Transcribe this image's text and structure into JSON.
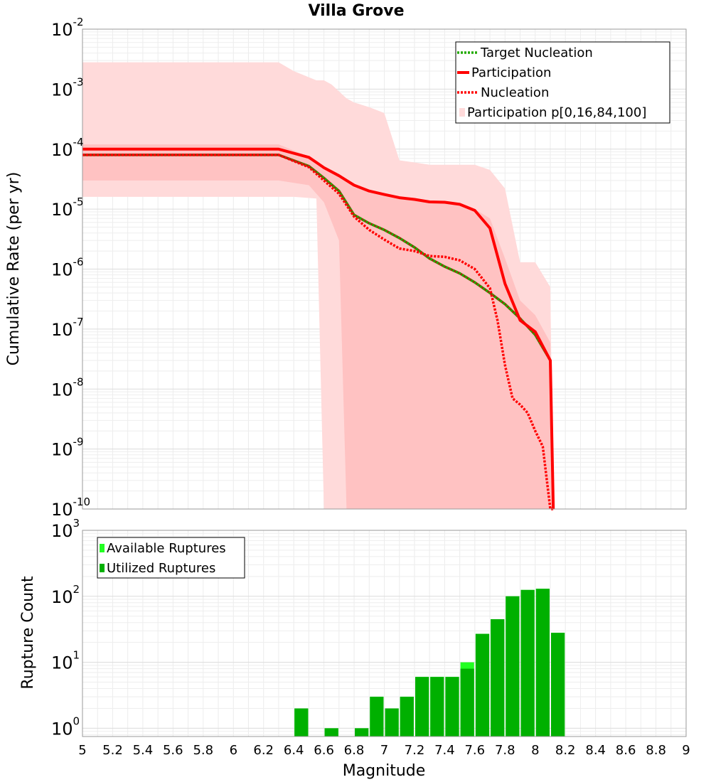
{
  "chart_data": [
    {
      "type": "line",
      "title": "Villa Grove",
      "ylabel": "Cumulative Rate (per yr)",
      "xlabel": "Magnitude",
      "xlim": [
        5,
        9
      ],
      "ylim": [
        1e-10,
        0.01
      ],
      "yscale": "log",
      "grid": true,
      "legend_position": "top-right",
      "y_ticks": [
        {
          "base": "10",
          "exp": "-2",
          "value": 0.01
        },
        {
          "base": "10",
          "exp": "-3",
          "value": 0.001
        },
        {
          "base": "10",
          "exp": "-4",
          "value": 0.0001
        },
        {
          "base": "10",
          "exp": "-5",
          "value": 1e-05
        },
        {
          "base": "10",
          "exp": "-6",
          "value": 1e-06
        },
        {
          "base": "10",
          "exp": "-7",
          "value": 1e-07
        },
        {
          "base": "10",
          "exp": "-8",
          "value": 1e-08
        },
        {
          "base": "10",
          "exp": "-9",
          "value": 1e-09
        },
        {
          "base": "10",
          "exp": "-10",
          "value": 1e-10
        }
      ],
      "series": [
        {
          "name": "Target Nucleation",
          "style": "dotted",
          "color": "#22aa00",
          "color2": "#9a2c00",
          "x": [
            5.0,
            6.3,
            6.5,
            6.6,
            6.7,
            6.8,
            6.9,
            7.0,
            7.1,
            7.2,
            7.3,
            7.4,
            7.5,
            7.6,
            7.7,
            7.8,
            7.9,
            8.0,
            8.1
          ],
          "y": [
            8e-05,
            8e-05,
            5.2e-05,
            3.3e-05,
            2e-05,
            8e-06,
            5.8e-06,
            4.5e-06,
            3.3e-06,
            2.3e-06,
            1.5e-06,
            1.1e-06,
            8.5e-07,
            6e-07,
            4e-07,
            2.6e-07,
            1.5e-07,
            8e-08,
            3e-08
          ]
        },
        {
          "name": "Participation",
          "style": "solid",
          "color": "#ff0000",
          "x": [
            5.0,
            6.3,
            6.5,
            6.55,
            6.6,
            6.7,
            6.8,
            6.9,
            7.0,
            7.1,
            7.2,
            7.3,
            7.4,
            7.5,
            7.6,
            7.7,
            7.8,
            7.9,
            8.0,
            8.1,
            8.12
          ],
          "y": [
            0.0001,
            0.0001,
            7.3e-05,
            6e-05,
            4.9e-05,
            3.6e-05,
            2.5e-05,
            2e-05,
            1.75e-05,
            1.55e-05,
            1.45e-05,
            1.32e-05,
            1.3e-05,
            1.2e-05,
            9.5e-06,
            4.8e-06,
            5.7e-07,
            1.4e-07,
            9e-08,
            3e-08,
            1e-10
          ]
        },
        {
          "name": "Nucleation",
          "style": "dotted",
          "color": "#ff0000",
          "x": [
            5.0,
            6.3,
            6.5,
            6.6,
            6.7,
            6.8,
            6.9,
            7.0,
            7.1,
            7.2,
            7.3,
            7.4,
            7.5,
            7.6,
            7.7,
            7.75,
            7.8,
            7.85,
            7.9,
            7.95,
            8.0,
            8.05,
            8.1,
            8.12
          ],
          "y": [
            8e-05,
            8e-05,
            5e-05,
            3e-05,
            1.8e-05,
            7.5e-06,
            4.5e-06,
            3.1e-06,
            2.2e-06,
            2e-06,
            1.65e-06,
            1.6e-06,
            1.4e-06,
            1e-06,
            4.8e-07,
            1.4e-07,
            2.5e-08,
            7e-09,
            5.5e-09,
            4e-09,
            2e-09,
            1.1e-09,
            1e-10,
            1e-10
          ]
        }
      ],
      "bands": [
        {
          "name": "Participation p[0,16,84,100]",
          "color": "#ffdada",
          "legend": true,
          "x": [
            5.0,
            6.3,
            6.4,
            6.55,
            6.6,
            6.65,
            6.75,
            6.8,
            6.9,
            7.0,
            7.1,
            7.2,
            7.3,
            7.4,
            7.5,
            7.6,
            7.7,
            7.8,
            7.9,
            8.0,
            8.1,
            8.12
          ],
          "upper": [
            0.0028,
            0.0028,
            0.002,
            0.0014,
            0.0014,
            0.0012,
            0.0007,
            0.0006,
            0.0005,
            0.0004,
            6.5e-05,
            6e-05,
            5.5e-05,
            5.5e-05,
            5.5e-05,
            5.5e-05,
            4.5e-05,
            2.2e-05,
            1.3e-06,
            1.3e-06,
            5e-07,
            1e-10
          ],
          "lower": [
            1.6e-05,
            1.6e-05,
            1.6e-05,
            1.5e-05,
            1e-10,
            1e-10,
            1e-10,
            1e-10,
            1e-10,
            1e-10,
            1e-10,
            1e-10,
            1e-10,
            1e-10,
            1e-10,
            1e-10,
            1e-10,
            1e-10,
            1e-10,
            1e-10,
            1e-10,
            1e-10
          ]
        },
        {
          "name": "Participation 16-84",
          "color": "#ffc2c2",
          "legend": false,
          "x": [
            5.0,
            6.3,
            6.5,
            6.6,
            6.7,
            6.75,
            6.8,
            6.9,
            7.0,
            7.1,
            7.2,
            7.3,
            7.4,
            7.5,
            7.6,
            7.7,
            7.8,
            7.9,
            8.0,
            8.1,
            8.12
          ],
          "upper": [
            0.00012,
            0.00012,
            7.5e-05,
            5.2e-05,
            3.5e-05,
            2.8e-05,
            2.3e-05,
            2e-05,
            1.7e-05,
            1.5e-05,
            1.4e-05,
            1.3e-05,
            1.25e-05,
            1.2e-05,
            1e-05,
            7e-06,
            1.5e-06,
            3e-07,
            1.7e-07,
            6e-08,
            1e-10
          ],
          "lower": [
            3e-05,
            3e-05,
            2.5e-05,
            1.3e-05,
            3e-06,
            1e-10,
            1e-10,
            1e-10,
            1e-10,
            1e-10,
            1e-10,
            1e-10,
            1e-10,
            1e-10,
            1e-10,
            1e-10,
            1e-10,
            1e-10,
            1e-10,
            1e-10,
            1e-10
          ]
        }
      ]
    },
    {
      "type": "bar",
      "ylabel": "Rupture Count",
      "xlabel": "Magnitude",
      "xlim": [
        5,
        9
      ],
      "ylim": [
        0.75,
        1000
      ],
      "yscale": "log",
      "grid": true,
      "legend_position": "top-left",
      "bin_width": 0.1,
      "x_ticks": [
        "5",
        "5.2",
        "5.4",
        "5.6",
        "5.8",
        "6",
        "6.2",
        "6.4",
        "6.6",
        "6.8",
        "7",
        "7.2",
        "7.4",
        "7.6",
        "7.8",
        "8",
        "8.2",
        "8.4",
        "8.6",
        "8.8",
        "9"
      ],
      "y_ticks": [
        {
          "base": "10",
          "exp": "3",
          "value": 1000
        },
        {
          "base": "10",
          "exp": "2",
          "value": 100
        },
        {
          "base": "10",
          "exp": "1",
          "value": 10
        },
        {
          "base": "10",
          "exp": "0",
          "value": 1
        }
      ],
      "bin_centers": [
        6.45,
        6.65,
        6.85,
        6.95,
        7.05,
        7.15,
        7.25,
        7.35,
        7.45,
        7.55,
        7.65,
        7.75,
        7.85,
        7.95,
        8.05,
        8.15
      ],
      "series": [
        {
          "name": "Available Ruptures",
          "color": "#22ff22",
          "values": [
            2,
            1,
            1,
            3,
            2,
            3,
            6,
            6,
            6,
            10,
            27,
            45,
            100,
            125,
            130,
            28
          ]
        },
        {
          "name": "Utilized Ruptures",
          "color": "#00b000",
          "values": [
            2,
            1,
            1,
            3,
            2,
            3,
            6,
            6,
            6,
            8,
            27,
            45,
            100,
            125,
            130,
            28
          ]
        }
      ]
    }
  ]
}
